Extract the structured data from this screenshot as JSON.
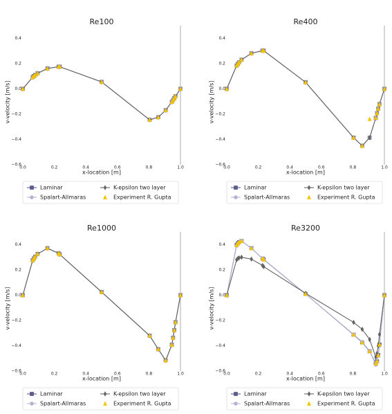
{
  "chart_data": [
    {
      "type": "line",
      "title": "Re100",
      "x_label": "x-location [m]",
      "y_label": "v-velocity [m/s]",
      "x": [
        0,
        0.0625,
        0.0703,
        0.0781,
        0.0938,
        0.1563,
        0.2266,
        0.2344,
        0.5,
        0.8047,
        0.8594,
        0.9063,
        0.9453,
        0.9531,
        0.9609,
        0.9688,
        1.0
      ],
      "series": [
        {
          "name": "Laminar",
          "color": "#5b5b8c",
          "marker": "square",
          "line": true,
          "values": [
            0,
            0.092,
            0.101,
            0.109,
            0.123,
            0.161,
            0.175,
            0.175,
            0.055,
            -0.245,
            -0.224,
            -0.169,
            -0.103,
            -0.089,
            -0.074,
            -0.059,
            0
          ]
        },
        {
          "name": "Spalart-Allmaras",
          "color": "#b4b4d2",
          "marker": "circle",
          "line": true,
          "values": [
            0,
            0.092,
            0.101,
            0.109,
            0.123,
            0.161,
            0.175,
            0.175,
            0.055,
            -0.245,
            -0.224,
            -0.169,
            -0.103,
            -0.089,
            -0.074,
            -0.059,
            0
          ]
        },
        {
          "name": "K-epsilon two layer",
          "color": "#636363",
          "marker": "diamond",
          "line": true,
          "values": [
            0,
            0.092,
            0.101,
            0.109,
            0.123,
            0.161,
            0.175,
            0.175,
            0.055,
            -0.245,
            -0.224,
            -0.169,
            -0.103,
            -0.089,
            -0.074,
            -0.059,
            0
          ]
        },
        {
          "name": "Experiment R. Gupta",
          "color": "#f5c400",
          "marker": "triangle",
          "line": false,
          "values": [
            0,
            0.09233,
            0.10091,
            0.1089,
            0.12317,
            0.16077,
            0.17507,
            0.17527,
            0.05454,
            -0.24533,
            -0.22445,
            -0.16914,
            -0.10313,
            -0.08864,
            -0.07391,
            -0.05906,
            0
          ]
        }
      ],
      "xlim": [
        0,
        1.0
      ],
      "ylim": [
        -0.6,
        0.5
      ],
      "xticks": [
        {
          "value": 0,
          "label": "0.0"
        },
        0.2,
        0.4,
        0.6,
        0.8,
        {
          "value": 1.0,
          "label": "1.0"
        }
      ],
      "yticks": [
        {
          "value": -0.6,
          "label": "−0.6"
        },
        {
          "value": -0.4,
          "label": "−0.4"
        },
        {
          "value": -0.2,
          "label": "−0.2"
        },
        {
          "value": 0,
          "label": "0.0"
        },
        0.2,
        0.4
      ]
    },
    {
      "type": "line",
      "title": "Re400",
      "x_label": "x-location [m]",
      "y_label": "v-velocity [m/s]",
      "x": [
        0,
        0.0625,
        0.0703,
        0.0781,
        0.0938,
        0.1563,
        0.2266,
        0.2344,
        0.5,
        0.8047,
        0.8594,
        0.9063,
        0.9453,
        0.9531,
        0.9609,
        0.9688,
        1.0
      ],
      "series": [
        {
          "name": "Laminar",
          "color": "#5b5b8c",
          "marker": "square",
          "line": true,
          "values": [
            0,
            0.184,
            0.197,
            0.209,
            0.23,
            0.281,
            0.302,
            0.302,
            0.052,
            -0.386,
            -0.45,
            -0.386,
            -0.23,
            -0.193,
            -0.157,
            -0.121,
            0
          ]
        },
        {
          "name": "Spalart-Allmaras",
          "color": "#b4b4d2",
          "marker": "circle",
          "line": true,
          "values": [
            0,
            0.184,
            0.197,
            0.209,
            0.23,
            0.281,
            0.302,
            0.302,
            0.052,
            -0.386,
            -0.45,
            -0.386,
            -0.23,
            -0.193,
            -0.157,
            -0.121,
            0
          ]
        },
        {
          "name": "K-epsilon two layer",
          "color": "#636363",
          "marker": "diamond",
          "line": true,
          "values": [
            0,
            0.184,
            0.197,
            0.209,
            0.23,
            0.281,
            0.302,
            0.302,
            0.052,
            -0.386,
            -0.45,
            -0.386,
            -0.23,
            -0.193,
            -0.157,
            -0.121,
            0
          ]
        },
        {
          "name": "Experiment R. Gupta",
          "color": "#f5c400",
          "marker": "triangle",
          "line": false,
          "values": [
            0,
            0.1836,
            0.19713,
            0.2092,
            0.22965,
            0.28124,
            0.30203,
            0.30174,
            0.05186,
            -0.38598,
            -0.44993,
            -0.23827,
            -0.22847,
            -0.19254,
            -0.15663,
            -0.12146,
            0
          ]
        }
      ],
      "xlim": [
        0,
        1.0
      ],
      "ylim": [
        -0.6,
        0.5
      ],
      "xticks": [
        {
          "value": 0,
          "label": "0.0"
        },
        0.2,
        0.4,
        0.6,
        0.8,
        {
          "value": 1.0,
          "label": "1.0"
        }
      ],
      "yticks": [
        {
          "value": -0.6,
          "label": "−0.6"
        },
        {
          "value": -0.4,
          "label": "−0.4"
        },
        {
          "value": -0.2,
          "label": "−0.2"
        },
        {
          "value": 0,
          "label": "0.0"
        },
        0.2,
        0.4
      ]
    },
    {
      "type": "line",
      "title": "Re1000",
      "x_label": "x-location [m]",
      "y_label": "v-velocity [m/s]",
      "x": [
        0,
        0.0625,
        0.0703,
        0.0781,
        0.0938,
        0.1563,
        0.2266,
        0.2344,
        0.5,
        0.8047,
        0.8594,
        0.9063,
        0.9453,
        0.9531,
        0.9609,
        0.9688,
        1.0
      ],
      "series": [
        {
          "name": "Laminar",
          "color": "#5b5b8c",
          "marker": "square",
          "line": true,
          "values": [
            0,
            0.275,
            0.29,
            0.304,
            0.326,
            0.371,
            0.331,
            0.322,
            0.025,
            -0.32,
            -0.427,
            -0.516,
            -0.392,
            -0.337,
            -0.277,
            -0.214,
            0
          ]
        },
        {
          "name": "Spalart-Allmaras",
          "color": "#b4b4d2",
          "marker": "circle",
          "line": true,
          "values": [
            0,
            0.275,
            0.29,
            0.304,
            0.326,
            0.371,
            0.331,
            0.322,
            0.025,
            -0.32,
            -0.427,
            -0.516,
            -0.392,
            -0.337,
            -0.277,
            -0.214,
            0
          ]
        },
        {
          "name": "K-epsilon two layer",
          "color": "#636363",
          "marker": "diamond",
          "line": true,
          "values": [
            0,
            0.275,
            0.29,
            0.304,
            0.326,
            0.371,
            0.331,
            0.322,
            0.025,
            -0.32,
            -0.427,
            -0.516,
            -0.392,
            -0.337,
            -0.277,
            -0.214,
            0
          ]
        },
        {
          "name": "Experiment R. Gupta",
          "color": "#f5c400",
          "marker": "triangle",
          "line": false,
          "values": [
            0,
            0.27485,
            0.29012,
            0.30353,
            0.32627,
            0.37095,
            0.33075,
            0.32235,
            0.02526,
            -0.31966,
            -0.42665,
            -0.5155,
            -0.39188,
            -0.33714,
            -0.27669,
            -0.21388,
            0
          ]
        }
      ],
      "xlim": [
        0,
        1.0
      ],
      "ylim": [
        -0.6,
        0.5
      ],
      "xticks": [
        {
          "value": 0,
          "label": "0.0"
        },
        0.2,
        0.4,
        0.6,
        0.8,
        {
          "value": 1.0,
          "label": "1.0"
        }
      ],
      "yticks": [
        {
          "value": -0.6,
          "label": "−0.6"
        },
        {
          "value": -0.4,
          "label": "−0.4"
        },
        {
          "value": -0.2,
          "label": "−0.2"
        },
        {
          "value": 0,
          "label": "0.0"
        },
        0.2,
        0.4
      ]
    },
    {
      "type": "line",
      "title": "Re3200",
      "x_label": "x-location [m]",
      "y_label": "v-velocity [m/s]",
      "x": [
        0,
        0.0625,
        0.0703,
        0.0781,
        0.0938,
        0.1563,
        0.2266,
        0.2344,
        0.5,
        0.8047,
        0.8594,
        0.9063,
        0.9453,
        0.9531,
        0.9609,
        0.9688,
        1.0
      ],
      "series": [
        {
          "name": "Laminar",
          "color": "#5b5b8c",
          "marker": "square",
          "line": true,
          "values": [
            0,
            0.396,
            0.409,
            0.419,
            0.428,
            0.371,
            0.29,
            0.282,
            0.01,
            -0.312,
            -0.374,
            -0.443,
            -0.541,
            -0.524,
            -0.474,
            -0.39,
            0
          ]
        },
        {
          "name": "Spalart-Allmaras",
          "color": "#b4b4d2",
          "marker": "circle",
          "line": true,
          "values": [
            0,
            0.39,
            0.405,
            0.415,
            0.43,
            0.37,
            0.29,
            0.28,
            0.01,
            -0.31,
            -0.37,
            -0.44,
            -0.55,
            -0.53,
            -0.48,
            -0.4,
            0
          ]
        },
        {
          "name": "K-epsilon two layer",
          "color": "#636363",
          "marker": "diamond",
          "line": true,
          "values": [
            0,
            0.28,
            0.29,
            0.295,
            0.3,
            0.285,
            0.235,
            0.225,
            0.015,
            -0.215,
            -0.27,
            -0.35,
            -0.49,
            -0.46,
            -0.4,
            -0.31,
            0
          ]
        },
        {
          "name": "Experiment R. Gupta",
          "color": "#f5c400",
          "marker": "triangle",
          "line": false,
          "values": [
            0,
            0.3956,
            0.40917,
            0.41906,
            0.42768,
            0.37119,
            0.2903,
            0.28188,
            0.00999,
            -0.31184,
            -0.37401,
            -0.44307,
            -0.54053,
            -0.52357,
            -0.47425,
            -0.39017,
            0
          ]
        }
      ],
      "xlim": [
        0,
        1.0
      ],
      "ylim": [
        -0.6,
        0.5
      ],
      "xticks": [
        {
          "value": 0,
          "label": "0.0"
        },
        0.2,
        0.4,
        0.6,
        0.8,
        {
          "value": 1.0,
          "label": "1.0"
        }
      ],
      "yticks": [
        {
          "value": -0.6,
          "label": "−0.6"
        },
        {
          "value": -0.4,
          "label": "−0.4"
        },
        {
          "value": -0.2,
          "label": "−0.2"
        },
        {
          "value": 0,
          "label": "0.0"
        },
        0.2,
        0.4
      ]
    }
  ]
}
